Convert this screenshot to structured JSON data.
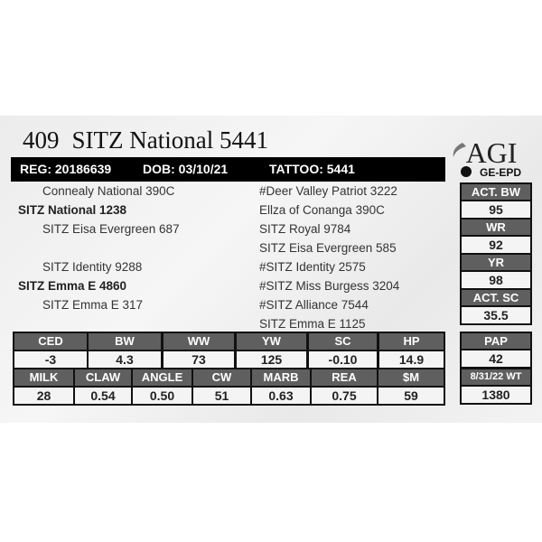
{
  "header": {
    "lot": "409",
    "name": "SITZ National 5441",
    "reg": "REG: 20186639",
    "dob": "DOB: 03/10/21",
    "tattoo": "TATTOO: 5441"
  },
  "logo": {
    "text": "AGI",
    "sub": "GE-EPD"
  },
  "pedigree": {
    "left": [
      {
        "text": "Connealy National 390C",
        "bold": false
      },
      {
        "text": "SITZ National 1238",
        "bold": true
      },
      {
        "text": "SITZ Eisa Evergreen 687",
        "bold": false
      },
      {
        "text": "",
        "bold": false
      },
      {
        "text": "SITZ Identity 9288",
        "bold": false
      },
      {
        "text": "SITZ Emma E 4860",
        "bold": true
      },
      {
        "text": "SITZ Emma E 317",
        "bold": false
      }
    ],
    "right": [
      "#Deer Valley Patriot 3222",
      "Ellza of Conanga 390C",
      "SITZ Royal 9784",
      "SITZ Eisa Evergreen 585",
      "#SITZ Identity 2575",
      "#SITZ Miss Burgess 3204",
      "#SITZ Alliance 7544",
      "SITZ Emma E 1125"
    ]
  },
  "epd_row1": [
    {
      "label": "CED",
      "value": "-3"
    },
    {
      "label": "BW",
      "value": "4.3"
    },
    {
      "label": "WW",
      "value": "73"
    },
    {
      "label": "YW",
      "value": "125"
    },
    {
      "label": "SC",
      "value": "-0.10"
    },
    {
      "label": "HP",
      "value": "14.9"
    }
  ],
  "epd_row2": [
    {
      "label": "MILK",
      "value": "28"
    },
    {
      "label": "CLAW",
      "value": "0.54"
    },
    {
      "label": "ANGLE",
      "value": "0.50"
    },
    {
      "label": "CW",
      "value": "51"
    },
    {
      "label": "MARB",
      "value": "0.63"
    },
    {
      "label": "REA",
      "value": "0.75"
    },
    {
      "label": "$M",
      "value": "59"
    }
  ],
  "side": [
    {
      "label": "ACT. BW",
      "value": "95"
    },
    {
      "label": "WR",
      "value": "92"
    },
    {
      "label": "YR",
      "value": "98"
    },
    {
      "label": "ACT. SC",
      "value": "35.5"
    },
    {
      "label": "PAP",
      "value": "42"
    },
    {
      "label": "8/31/22 WT",
      "value": "1380"
    }
  ]
}
